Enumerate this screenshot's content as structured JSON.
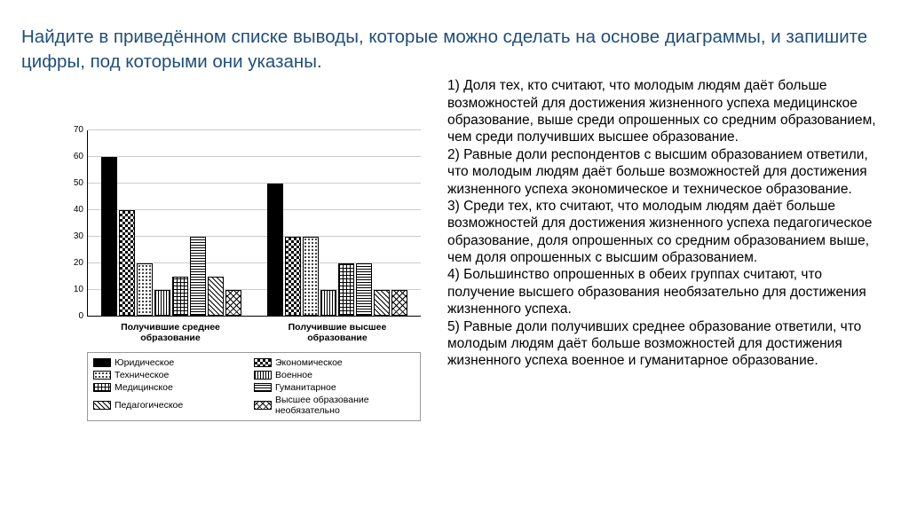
{
  "title": "Найдите в приведённом списке выводы, которые можно сделать на основе диаграммы, и запишите цифры, под которыми они указаны.",
  "statements": {
    "s1": "1) Доля тех, кто считают, что молодым людям даёт больше возможностей для достижения жизненного успеха медицинское образование, выше среди опрошенных со средним образованием, чем среди получивших высшее образование.",
    "s2": "2) Равные доли респондентов с высшим образованием ответили, что молодым людям даёт больше возможностей для достижения жизненного успеха экономическое и техническое образование.",
    "s3": "3) Среди тех, кто считают, что молодым людям даёт больше возможностей для достижения жизненного успеха педагогическое образование, доля опрошенных со средним образованием выше, чем доля опрошенных с высшим образованием.",
    "s4": "4) Большинство опрошенных в обеих группах считают, что получение высшего образования необязательно для достижения жизненного успеха.",
    "s5": "5) Равные доли получивших среднее образование ответили, что молодым людям даёт больше возможностей для достижения жизненного успеха военное и гуманитарное образование."
  },
  "chart": {
    "type": "bar",
    "ymax": 70,
    "ytick_step": 10,
    "yticks": [
      "70",
      "60",
      "50",
      "40",
      "30",
      "20",
      "10",
      "0"
    ],
    "groups": [
      {
        "label_line1": "Получившие среднее",
        "label_line2": "образование",
        "values": [
          60,
          40,
          20,
          10,
          15,
          30,
          15,
          10
        ]
      },
      {
        "label_line1": "Получившие высшее",
        "label_line2": "образование",
        "values": [
          50,
          30,
          30,
          10,
          20,
          20,
          10,
          10
        ]
      }
    ],
    "series": [
      {
        "label": "Юридическое",
        "pattern": "pat-solid"
      },
      {
        "label": "Экономическое",
        "pattern": "pat-check"
      },
      {
        "label": "Техническое",
        "pattern": "pat-dots"
      },
      {
        "label": "Военное",
        "pattern": "pat-vlines"
      },
      {
        "label": "Медицинское",
        "pattern": "pat-grid"
      },
      {
        "label": "Гуманитарное",
        "pattern": "pat-hlines"
      },
      {
        "label": "Педагогическое",
        "pattern": "pat-diag"
      },
      {
        "label": "Высшее образование необязательно",
        "pattern": "pat-diamond"
      }
    ],
    "background_color": "#ffffff",
    "grid_color": "#cccccc",
    "axis_color": "#000000",
    "bar_border": "#000000",
    "label_fontsize": 10.5
  },
  "colors": {
    "title": "#1f4e79",
    "text": "#000000"
  }
}
